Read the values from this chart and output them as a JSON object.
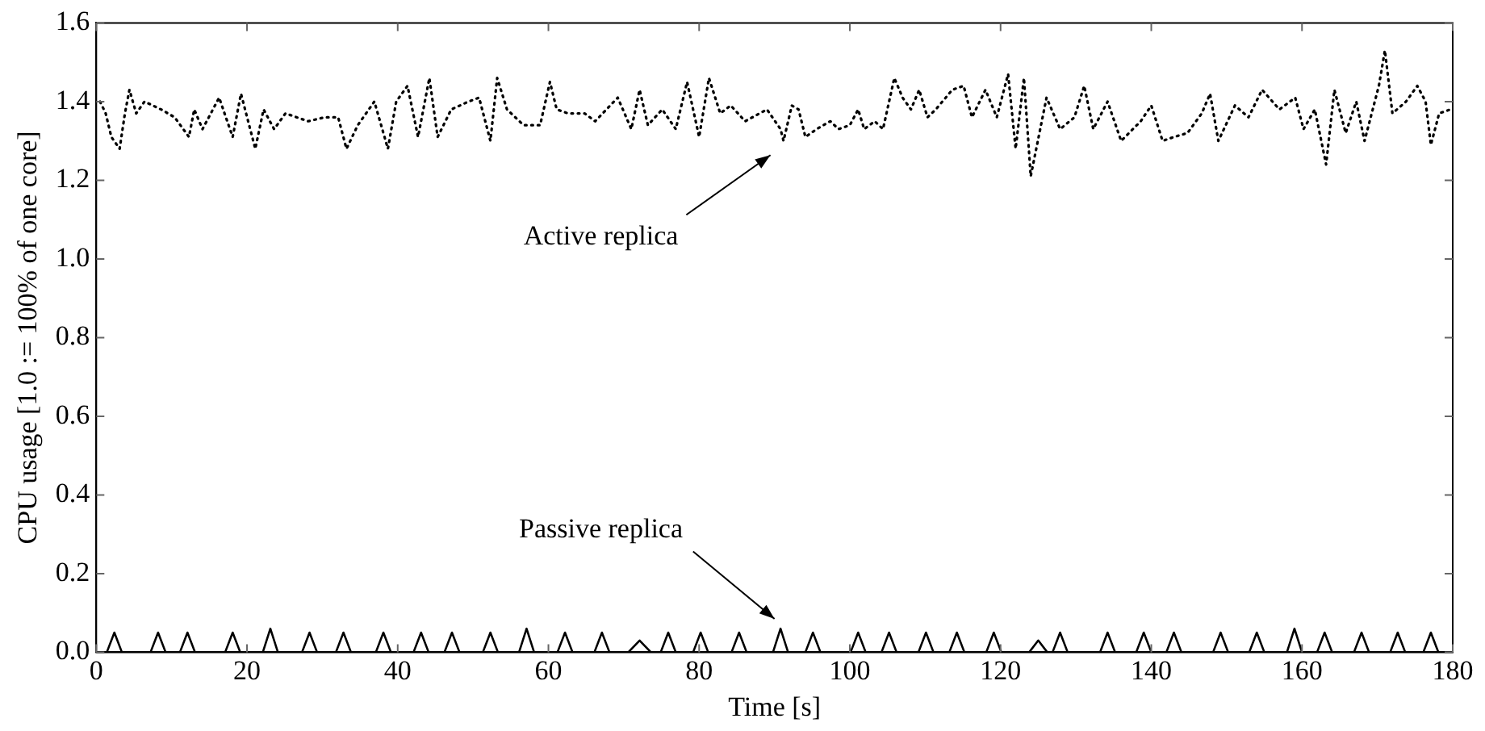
{
  "chart_data": {
    "type": "line",
    "xlabel": "Time [s]",
    "ylabel": "CPU usage [1.0 := 100% of one core]",
    "xlim": [
      0,
      180
    ],
    "xticks": [
      0,
      20,
      40,
      60,
      80,
      100,
      120,
      140,
      160,
      180
    ],
    "ylim": [
      0,
      1.6
    ],
    "yticks": [
      {
        "value": 0,
        "label": "0.0"
      },
      {
        "value": 0.2,
        "label": "0.2"
      },
      {
        "value": 0.4,
        "label": "0.4"
      },
      {
        "value": 0.6,
        "label": "0.6"
      },
      {
        "value": 0.8,
        "label": "0.8"
      },
      {
        "value": 1,
        "label": "1.0"
      },
      {
        "value": 1.2,
        "label": "1.2"
      },
      {
        "value": 1.4,
        "label": "1.4"
      },
      {
        "value": 1.6,
        "label": "1.6"
      }
    ],
    "grid": false,
    "legend": false,
    "marker": "none",
    "series": [
      {
        "color": "#000000",
        "line_style": "dotted",
        "x": [
          0.5,
          1.25,
          2.0,
          3.1,
          3.8,
          4.4,
          5.3,
          6.4,
          7.5,
          8.6,
          10.4,
          12.3,
          13.0,
          14.1,
          16.3,
          18.1,
          19.2,
          21.1,
          22.2,
          23.6,
          25.1,
          28.1,
          30.3,
          32.1,
          33.2,
          34.7,
          36.9,
          38.7,
          39.8,
          41.3,
          42.7,
          44.2,
          45.3,
          47.1,
          49.4,
          50.8,
          52.3,
          53.2,
          54.5,
          56.7,
          58.9,
          60.2,
          61.1,
          62.6,
          64.8,
          66.2,
          69.2,
          71.0,
          72.1,
          73.2,
          75.1,
          76.9,
          78.4,
          80.0,
          81.3,
          82.8,
          84.2,
          86.1,
          89.0,
          90.8,
          91.2,
          92.3,
          93.2,
          94.1,
          95.6,
          97.4,
          98.5,
          100.0,
          101.1,
          101.9,
          103.3,
          104.4,
          105.9,
          107.0,
          108.1,
          109.2,
          110.3,
          111.4,
          113.6,
          115.1,
          116.2,
          118.0,
          119.5,
          121.0,
          122.0,
          123.1,
          124.0,
          126.1,
          127.9,
          129.8,
          131.1,
          132.3,
          134.2,
          136.0,
          138.6,
          140.0,
          141.5,
          143.0,
          144.8,
          146.7,
          147.8,
          148.9,
          151.1,
          152.9,
          154.7,
          157.0,
          159.1,
          160.2,
          161.7,
          163.2,
          164.3,
          165.8,
          167.2,
          168.3,
          170.2,
          171.0,
          172.0,
          173.8,
          175.3,
          176.4,
          177.1,
          178.2,
          179.7
        ],
        "values": [
          1.4,
          1.37,
          1.31,
          1.28,
          1.37,
          1.43,
          1.37,
          1.4,
          1.39,
          1.38,
          1.36,
          1.31,
          1.38,
          1.33,
          1.41,
          1.31,
          1.42,
          1.28,
          1.38,
          1.33,
          1.37,
          1.35,
          1.36,
          1.36,
          1.28,
          1.34,
          1.4,
          1.28,
          1.4,
          1.44,
          1.31,
          1.46,
          1.31,
          1.38,
          1.4,
          1.41,
          1.3,
          1.46,
          1.38,
          1.34,
          1.34,
          1.45,
          1.38,
          1.37,
          1.37,
          1.35,
          1.41,
          1.33,
          1.43,
          1.34,
          1.38,
          1.33,
          1.45,
          1.31,
          1.46,
          1.37,
          1.39,
          1.35,
          1.38,
          1.33,
          1.3,
          1.39,
          1.38,
          1.31,
          1.33,
          1.35,
          1.33,
          1.34,
          1.38,
          1.33,
          1.35,
          1.33,
          1.46,
          1.41,
          1.38,
          1.43,
          1.36,
          1.38,
          1.43,
          1.44,
          1.36,
          1.43,
          1.36,
          1.47,
          1.28,
          1.46,
          1.21,
          1.41,
          1.33,
          1.36,
          1.44,
          1.33,
          1.4,
          1.3,
          1.35,
          1.39,
          1.3,
          1.31,
          1.32,
          1.37,
          1.42,
          1.3,
          1.39,
          1.36,
          1.43,
          1.38,
          1.41,
          1.33,
          1.38,
          1.24,
          1.43,
          1.32,
          1.4,
          1.3,
          1.44,
          1.53,
          1.37,
          1.4,
          1.44,
          1.4,
          1.29,
          1.37,
          1.38
        ]
      },
      {
        "color": "#000000",
        "line_style": "solid",
        "x": [
          0,
          1.4,
          2.4,
          3.4,
          7.2,
          8.2,
          9.2,
          11.1,
          12.1,
          13.1,
          17.1,
          18.1,
          19.1,
          22.1,
          23.1,
          24.1,
          27.3,
          28.3,
          29.3,
          31.8,
          32.8,
          33.8,
          37.1,
          38.1,
          39.1,
          42.1,
          43.1,
          44.1,
          46.2,
          47.2,
          48.2,
          51.3,
          52.3,
          53.3,
          56.1,
          57.1,
          58.1,
          61.2,
          62.2,
          63.2,
          66.1,
          67.1,
          68.1,
          70.6,
          72.1,
          73.6,
          74.9,
          75.9,
          76.9,
          79.2,
          80.2,
          81.2,
          84.3,
          85.3,
          86.3,
          89.8,
          90.8,
          91.8,
          94.1,
          95.1,
          96.1,
          100.1,
          101.1,
          102.1,
          104.2,
          105.2,
          106.2,
          109.1,
          110.1,
          111.1,
          113.2,
          114.2,
          115.2,
          118.1,
          119.1,
          120.1,
          123.8,
          125,
          126.2,
          126.9,
          127.9,
          128.9,
          133.2,
          134.2,
          135.2,
          138,
          139,
          140,
          142,
          143,
          144,
          148.2,
          149.2,
          150.2,
          153,
          154,
          155,
          158,
          159,
          160,
          162,
          163,
          164,
          166.9,
          167.9,
          168.9,
          171.7,
          172.7,
          173.7,
          176.1,
          177.1,
          178.1,
          180
        ],
        "values": [
          0,
          0,
          0.05,
          0,
          0,
          0.05,
          0,
          0,
          0.05,
          0,
          0,
          0.05,
          0,
          0,
          0.06,
          0,
          0,
          0.05,
          0,
          0,
          0.05,
          0,
          0,
          0.05,
          0,
          0,
          0.05,
          0,
          0,
          0.05,
          0,
          0,
          0.05,
          0,
          0,
          0.06,
          0,
          0,
          0.05,
          0,
          0,
          0.05,
          0,
          0,
          0.03,
          0,
          0,
          0.05,
          0,
          0,
          0.05,
          0,
          0,
          0.05,
          0,
          0,
          0.06,
          0,
          0,
          0.05,
          0,
          0,
          0.05,
          0,
          0,
          0.05,
          0,
          0,
          0.05,
          0,
          0,
          0.05,
          0,
          0,
          0.05,
          0,
          0,
          0.03,
          0,
          0,
          0.05,
          0,
          0,
          0.05,
          0,
          0,
          0.05,
          0,
          0,
          0.05,
          0,
          0,
          0.05,
          0,
          0,
          0.05,
          0,
          0,
          0.06,
          0,
          0,
          0.05,
          0,
          0,
          0.05,
          0,
          0,
          0.05,
          0,
          0,
          0.05,
          0,
          0
        ]
      }
    ],
    "annotations": [
      "Active replica",
      "Passive replica"
    ]
  }
}
